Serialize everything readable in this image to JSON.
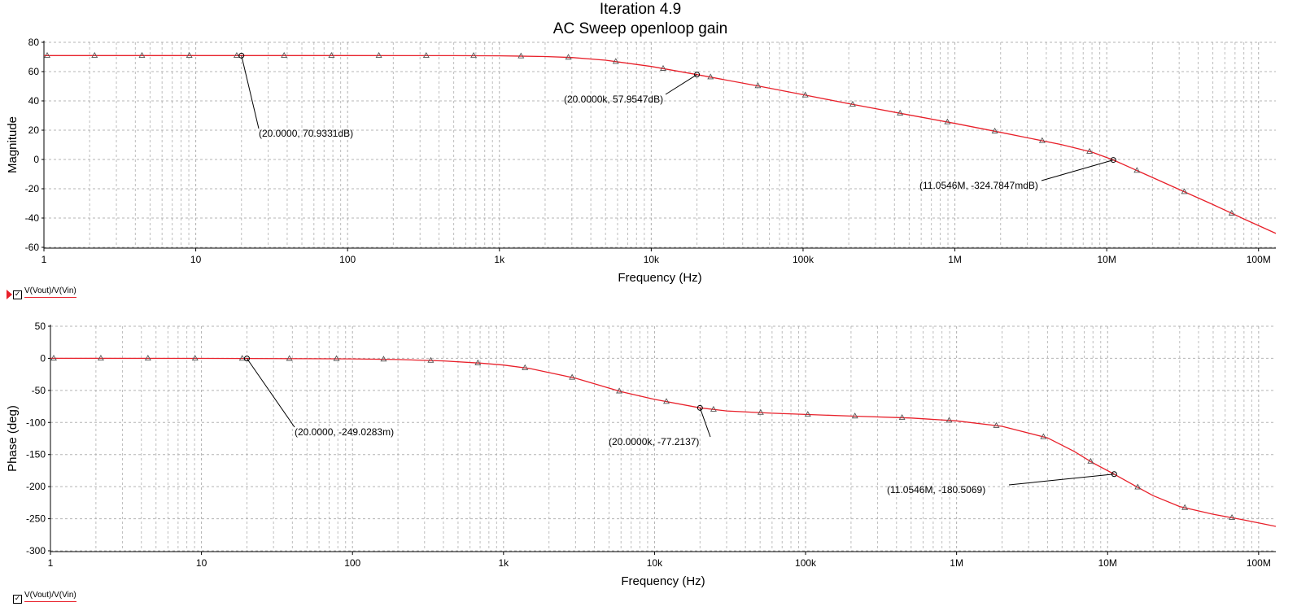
{
  "title": "Iteration 4.9",
  "subtitle": "AC Sweep openloop gain",
  "colors": {
    "trace": "#e8202a",
    "grid": "#a8a8a8",
    "axis": "#000000",
    "annotation": "#000000"
  },
  "legend": {
    "label": "V(Vout)/V(Vin)",
    "checked": "✓"
  },
  "chart_data": [
    {
      "type": "line",
      "xscale": "log",
      "xlim": [
        1,
        130000000
      ],
      "ylim": [
        -60,
        80
      ],
      "xlabel": "Frequency (Hz)",
      "ylabel": "Magnitude",
      "xticks": [
        {
          "v": 1,
          "t": "1"
        },
        {
          "v": 10,
          "t": "10"
        },
        {
          "v": 100,
          "t": "100"
        },
        {
          "v": 1000,
          "t": "1k"
        },
        {
          "v": 10000,
          "t": "10k"
        },
        {
          "v": 100000,
          "t": "100k"
        },
        {
          "v": 1000000,
          "t": "1M"
        },
        {
          "v": 10000000,
          "t": "10M"
        },
        {
          "v": 100000000,
          "t": "100M"
        }
      ],
      "yticks": [
        80,
        60,
        40,
        20,
        0,
        -20,
        -40,
        -60
      ],
      "series": [
        {
          "name": "V(Vout)/V(Vin)",
          "x": [
            1,
            10,
            100,
            500,
            1000,
            2000,
            3000,
            5000,
            10000,
            20000,
            50000,
            100000,
            200000,
            500000,
            1000000,
            2000000,
            5000000,
            8000000,
            11054600,
            15000000,
            20000000,
            30000000,
            50000000,
            80000000,
            130000000
          ],
          "y": [
            70.93,
            70.93,
            70.93,
            70.9,
            70.8,
            70.3,
            69.6,
            67.8,
            63.5,
            57.95,
            50.3,
            44.2,
            38.1,
            30.4,
            24.6,
            18.5,
            10.2,
            5.0,
            -0.32,
            -6.5,
            -12.3,
            -20.5,
            -30.8,
            -40.6,
            -50.5
          ]
        }
      ],
      "annotations": [
        {
          "x": 20,
          "y": 70.9331,
          "label": "(20.0000, 70.9331dB)"
        },
        {
          "x": 20000,
          "y": 57.9547,
          "label": "(20.0000k, 57.9547dB)"
        },
        {
          "x": 11054600,
          "y": -0.3248,
          "label": "(11.0546M, -324.7847mdB)"
        }
      ]
    },
    {
      "type": "line",
      "xscale": "log",
      "xlim": [
        1,
        130000000
      ],
      "ylim": [
        -300,
        50
      ],
      "xlabel": "Frequency (Hz)",
      "ylabel": "Phase (deg)",
      "xticks": [
        {
          "v": 1,
          "t": "1"
        },
        {
          "v": 10,
          "t": "10"
        },
        {
          "v": 100,
          "t": "100"
        },
        {
          "v": 1000,
          "t": "1k"
        },
        {
          "v": 10000,
          "t": "10k"
        },
        {
          "v": 100000,
          "t": "100k"
        },
        {
          "v": 1000000,
          "t": "1M"
        },
        {
          "v": 10000000,
          "t": "10M"
        },
        {
          "v": 100000000,
          "t": "100M"
        }
      ],
      "yticks": [
        50,
        0,
        -50,
        -100,
        -150,
        -200,
        -250,
        -300
      ],
      "series": [
        {
          "name": "V(Vout)/V(Vin)",
          "x": [
            1,
            10,
            20,
            100,
            200,
            400,
            700,
            1000,
            1500,
            3000,
            6000,
            10000,
            20000,
            30000,
            60000,
            100000,
            200000,
            500000,
            1000000,
            2000000,
            4000000,
            6000000,
            8000000,
            11054600,
            15000000,
            20000000,
            30000000,
            50000000,
            80000000,
            130000000
          ],
          "y": [
            0,
            -0.1,
            -0.25,
            -0.8,
            -1.9,
            -4.0,
            -7.5,
            -10.5,
            -16,
            -31,
            -52,
            -64,
            -77.21,
            -82,
            -85.5,
            -87.5,
            -90,
            -93,
            -97.5,
            -106,
            -124,
            -145,
            -163,
            -180.5,
            -198,
            -214,
            -231,
            -243,
            -252,
            -262
          ]
        }
      ],
      "annotations": [
        {
          "x": 20,
          "y": -0.249,
          "label": "(20.0000, -249.0283m)"
        },
        {
          "x": 20000,
          "y": -77.2137,
          "label": "(20.0000k, -77.2137)"
        },
        {
          "x": 11054600,
          "y": -180.5069,
          "label": "(11.0546M, -180.5069)"
        }
      ]
    }
  ]
}
